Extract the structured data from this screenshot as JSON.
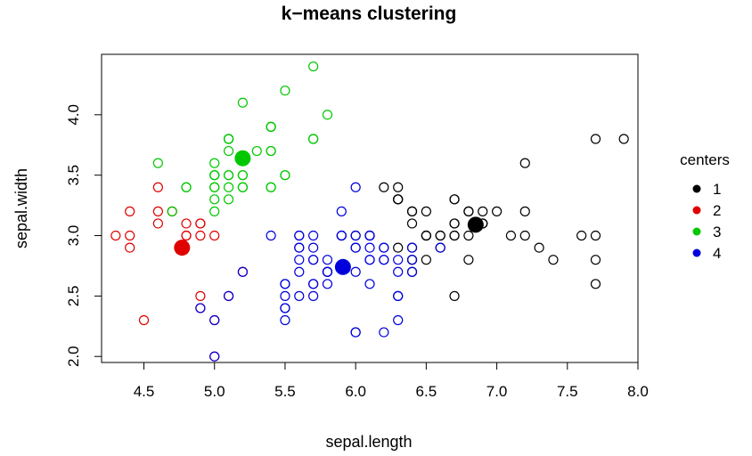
{
  "chart_data": {
    "type": "scatter",
    "title": "k−means clustering",
    "xlabel": "sepal.length",
    "ylabel": "sepal.width",
    "xlim": [
      4.2,
      8.0
    ],
    "ylim": [
      1.95,
      4.5
    ],
    "x_ticks": [
      "4.5",
      "5.0",
      "5.5",
      "6.0",
      "6.5",
      "7.0",
      "7.5",
      "8.0"
    ],
    "y_ticks": [
      "2.0",
      "2.5",
      "3.0",
      "3.5",
      "4.0"
    ],
    "grid": false,
    "legend": {
      "title": "centers",
      "placement": "right",
      "entries": [
        "1",
        "2",
        "3",
        "4"
      ]
    },
    "series": [
      {
        "name": "1",
        "color": "#000000",
        "center": [
          6.85,
          3.09
        ],
        "points": [
          [
            7.0,
            3.2
          ],
          [
            6.9,
            3.1
          ],
          [
            6.5,
            2.8
          ],
          [
            6.3,
            3.3
          ],
          [
            6.6,
            2.9
          ],
          [
            6.7,
            3.1
          ],
          [
            6.4,
            3.2
          ],
          [
            6.8,
            2.8
          ],
          [
            6.7,
            3.0
          ],
          [
            6.3,
            3.3
          ],
          [
            7.1,
            3.0
          ],
          [
            6.5,
            3.0
          ],
          [
            7.6,
            3.0
          ],
          [
            7.3,
            2.9
          ],
          [
            6.7,
            2.5
          ],
          [
            7.2,
            3.6
          ],
          [
            6.5,
            3.2
          ],
          [
            6.4,
            2.7
          ],
          [
            6.8,
            3.0
          ],
          [
            6.4,
            3.2
          ],
          [
            6.5,
            3.0
          ],
          [
            7.7,
            3.8
          ],
          [
            7.7,
            2.6
          ],
          [
            6.9,
            3.2
          ],
          [
            7.7,
            2.8
          ],
          [
            6.7,
            3.3
          ],
          [
            7.2,
            3.2
          ],
          [
            6.4,
            2.8
          ],
          [
            7.2,
            3.0
          ],
          [
            7.4,
            2.8
          ],
          [
            7.9,
            3.8
          ],
          [
            6.4,
            2.8
          ],
          [
            6.3,
            3.4
          ],
          [
            6.4,
            3.1
          ],
          [
            6.9,
            3.1
          ],
          [
            6.7,
            3.1
          ],
          [
            6.9,
            3.1
          ],
          [
            6.8,
            3.2
          ],
          [
            6.7,
            3.3
          ],
          [
            6.7,
            3.0
          ],
          [
            6.5,
            3.0
          ],
          [
            6.2,
            3.4
          ],
          [
            6.4,
            2.9
          ],
          [
            6.6,
            3.0
          ],
          [
            7.7,
            3.0
          ],
          [
            6.0,
            3.0
          ],
          [
            6.3,
            3.3
          ],
          [
            6.3,
            2.9
          ],
          [
            6.1,
            3.0
          ],
          [
            6.8,
            3.2
          ],
          [
            6.6,
            3.0
          ]
        ]
      },
      {
        "name": "2",
        "color": "#df0000",
        "center": [
          4.77,
          2.9
        ],
        "points": [
          [
            4.4,
            2.9
          ],
          [
            4.3,
            3.0
          ],
          [
            4.4,
            3.0
          ],
          [
            4.4,
            3.2
          ],
          [
            4.6,
            3.1
          ],
          [
            4.6,
            3.2
          ],
          [
            4.6,
            3.4
          ],
          [
            4.7,
            3.2
          ],
          [
            4.8,
            3.0
          ],
          [
            4.8,
            3.0
          ],
          [
            4.8,
            3.1
          ],
          [
            4.9,
            3.0
          ],
          [
            4.9,
            3.1
          ],
          [
            4.9,
            3.1
          ],
          [
            4.9,
            2.5
          ],
          [
            4.9,
            2.4
          ],
          [
            4.5,
            2.3
          ],
          [
            5.0,
            3.0
          ],
          [
            5.0,
            2.3
          ],
          [
            5.0,
            2.0
          ],
          [
            5.1,
            2.5
          ],
          [
            5.2,
            2.7
          ]
        ]
      },
      {
        "name": "3",
        "color": "#00c800",
        "center": [
          5.2,
          3.64
        ],
        "points": [
          [
            5.1,
            3.5
          ],
          [
            4.7,
            3.2
          ],
          [
            5.0,
            3.6
          ],
          [
            5.4,
            3.9
          ],
          [
            4.6,
            3.6
          ],
          [
            5.0,
            3.4
          ],
          [
            4.8,
            3.4
          ],
          [
            5.8,
            4.0
          ],
          [
            5.7,
            4.4
          ],
          [
            5.4,
            3.9
          ],
          [
            5.1,
            3.5
          ],
          [
            5.7,
            3.8
          ],
          [
            5.1,
            3.8
          ],
          [
            5.4,
            3.4
          ],
          [
            5.1,
            3.7
          ],
          [
            5.0,
            3.3
          ],
          [
            5.2,
            3.5
          ],
          [
            5.2,
            3.4
          ],
          [
            5.4,
            3.4
          ],
          [
            5.2,
            4.1
          ],
          [
            5.5,
            4.2
          ],
          [
            5.0,
            3.2
          ],
          [
            5.5,
            3.5
          ],
          [
            5.1,
            3.4
          ],
          [
            5.0,
            3.5
          ],
          [
            5.1,
            3.8
          ],
          [
            5.1,
            3.3
          ],
          [
            5.3,
            3.7
          ],
          [
            5.0,
            3.5
          ],
          [
            4.8,
            3.4
          ],
          [
            5.4,
            3.7
          ],
          [
            5.0,
            3.4
          ],
          [
            5.1,
            3.8
          ],
          [
            5.7,
            3.8
          ],
          [
            5.4,
            3.9
          ],
          [
            5.4,
            3.7
          ],
          [
            5.0,
            3.5
          ],
          [
            5.2,
            3.5
          ],
          [
            5.2,
            3.4
          ],
          [
            5.5,
            3.5
          ]
        ]
      },
      {
        "name": "4",
        "color": "#0000dc",
        "center": [
          5.91,
          2.74
        ],
        "points": [
          [
            5.5,
            2.3
          ],
          [
            5.7,
            2.8
          ],
          [
            4.9,
            2.4
          ],
          [
            6.6,
            2.9
          ],
          [
            5.2,
            2.7
          ],
          [
            5.0,
            2.0
          ],
          [
            5.9,
            3.0
          ],
          [
            6.0,
            2.2
          ],
          [
            6.1,
            2.9
          ],
          [
            5.6,
            2.9
          ],
          [
            5.6,
            3.0
          ],
          [
            5.8,
            2.7
          ],
          [
            6.2,
            2.2
          ],
          [
            5.6,
            2.5
          ],
          [
            5.9,
            3.2
          ],
          [
            6.1,
            2.8
          ],
          [
            6.3,
            2.5
          ],
          [
            6.1,
            2.8
          ],
          [
            6.4,
            2.9
          ],
          [
            5.7,
            2.6
          ],
          [
            5.5,
            2.4
          ],
          [
            5.5,
            2.4
          ],
          [
            5.8,
            2.7
          ],
          [
            6.0,
            2.7
          ],
          [
            5.4,
            3.0
          ],
          [
            6.0,
            3.4
          ],
          [
            6.3,
            2.3
          ],
          [
            5.6,
            3.0
          ],
          [
            5.5,
            2.5
          ],
          [
            5.5,
            2.6
          ],
          [
            6.1,
            3.0
          ],
          [
            5.8,
            2.6
          ],
          [
            5.0,
            2.3
          ],
          [
            5.6,
            2.7
          ],
          [
            5.7,
            3.0
          ],
          [
            5.7,
            2.9
          ],
          [
            6.2,
            2.9
          ],
          [
            5.1,
            2.5
          ],
          [
            5.7,
            2.8
          ],
          [
            5.8,
            2.8
          ],
          [
            6.0,
            2.2
          ],
          [
            5.6,
            2.8
          ],
          [
            6.3,
            2.7
          ],
          [
            6.2,
            2.8
          ],
          [
            6.1,
            2.6
          ],
          [
            6.3,
            2.5
          ],
          [
            5.9,
            3.0
          ],
          [
            6.0,
            2.9
          ],
          [
            5.7,
            2.5
          ],
          [
            5.8,
            2.7
          ],
          [
            6.0,
            3.0
          ],
          [
            6.1,
            3.0
          ],
          [
            6.4,
            2.7
          ],
          [
            5.9,
            3.0
          ],
          [
            5.8,
            2.7
          ],
          [
            6.3,
            2.8
          ],
          [
            6.4,
            2.8
          ],
          [
            6.0,
            2.9
          ],
          [
            5.6,
            2.9
          ],
          [
            6.2,
            2.8
          ],
          [
            5.7,
            2.6
          ],
          [
            5.5,
            2.6
          ],
          [
            6.2,
            2.9
          ]
        ]
      }
    ]
  }
}
